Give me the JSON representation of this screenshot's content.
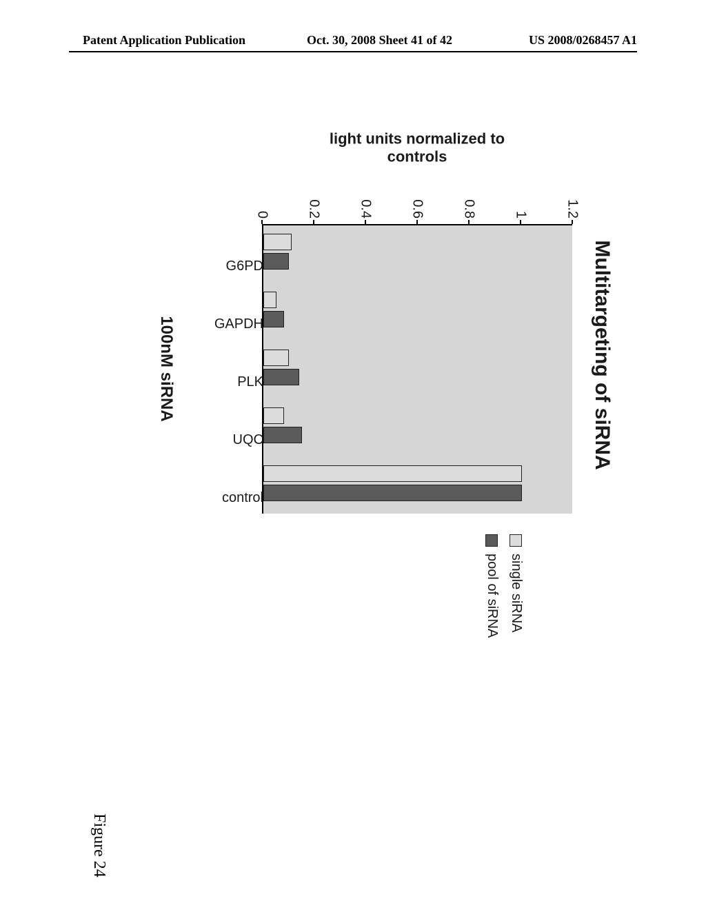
{
  "header": {
    "left": "Patent Application Publication",
    "center": "Oct. 30, 2008  Sheet 41 of 42",
    "right": "US 2008/0268457 A1"
  },
  "figure_caption": "Figure 24",
  "chart": {
    "type": "bar",
    "title": "Multitargeting of siRNA",
    "yaxis_label_line1": "light units normalized to",
    "yaxis_label_line2": "controls",
    "xaxis_label": "100nM siRNA",
    "ylim_min": 0,
    "ylim_max": 1.2,
    "ytick_step": 0.2,
    "yticks": [
      "0",
      "0.2",
      "0.4",
      "0.6",
      "0.8",
      "1",
      "1.2"
    ],
    "plot_bg_color": "#d6d6d6",
    "axis_color": "#000000",
    "bar_border_color": "#222222",
    "series": [
      {
        "key": "single",
        "label": "single siRNA",
        "color": "#dcdcdc"
      },
      {
        "key": "pool",
        "label": "pool of siRNA",
        "color": "#5a5a5a"
      }
    ],
    "categories": [
      {
        "name": "G6PD",
        "single": 0.11,
        "pool": 0.1
      },
      {
        "name": "GAPDH",
        "single": 0.05,
        "pool": 0.08
      },
      {
        "name": "PLK",
        "single": 0.1,
        "pool": 0.14
      },
      {
        "name": "UQC",
        "single": 0.08,
        "pool": 0.15
      },
      {
        "name": "control",
        "single": 1.0,
        "pool": 1.0
      }
    ]
  }
}
